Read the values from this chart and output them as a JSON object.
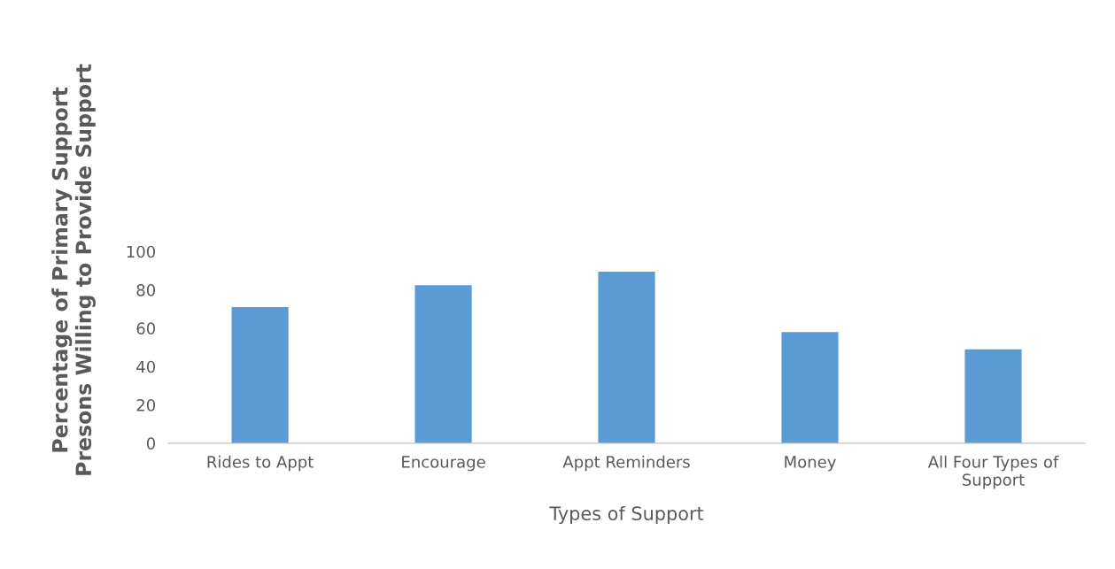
{
  "chart_data": {
    "type": "bar",
    "xlabel": "Types of Support",
    "ylabel": "Percentage of Primary Support\nPresons Willing to Provide Support",
    "categories": [
      "Rides to Appt",
      "Encourage",
      "Appt Reminders",
      "Money",
      "All Four Types of\nSupport"
    ],
    "values": [
      71,
      82.5,
      89.5,
      58,
      49
    ],
    "color": "#5b9bd5",
    "ylim": [
      0,
      100
    ],
    "yticks": [
      0,
      20,
      40,
      60,
      80,
      100
    ],
    "grid": false
  }
}
